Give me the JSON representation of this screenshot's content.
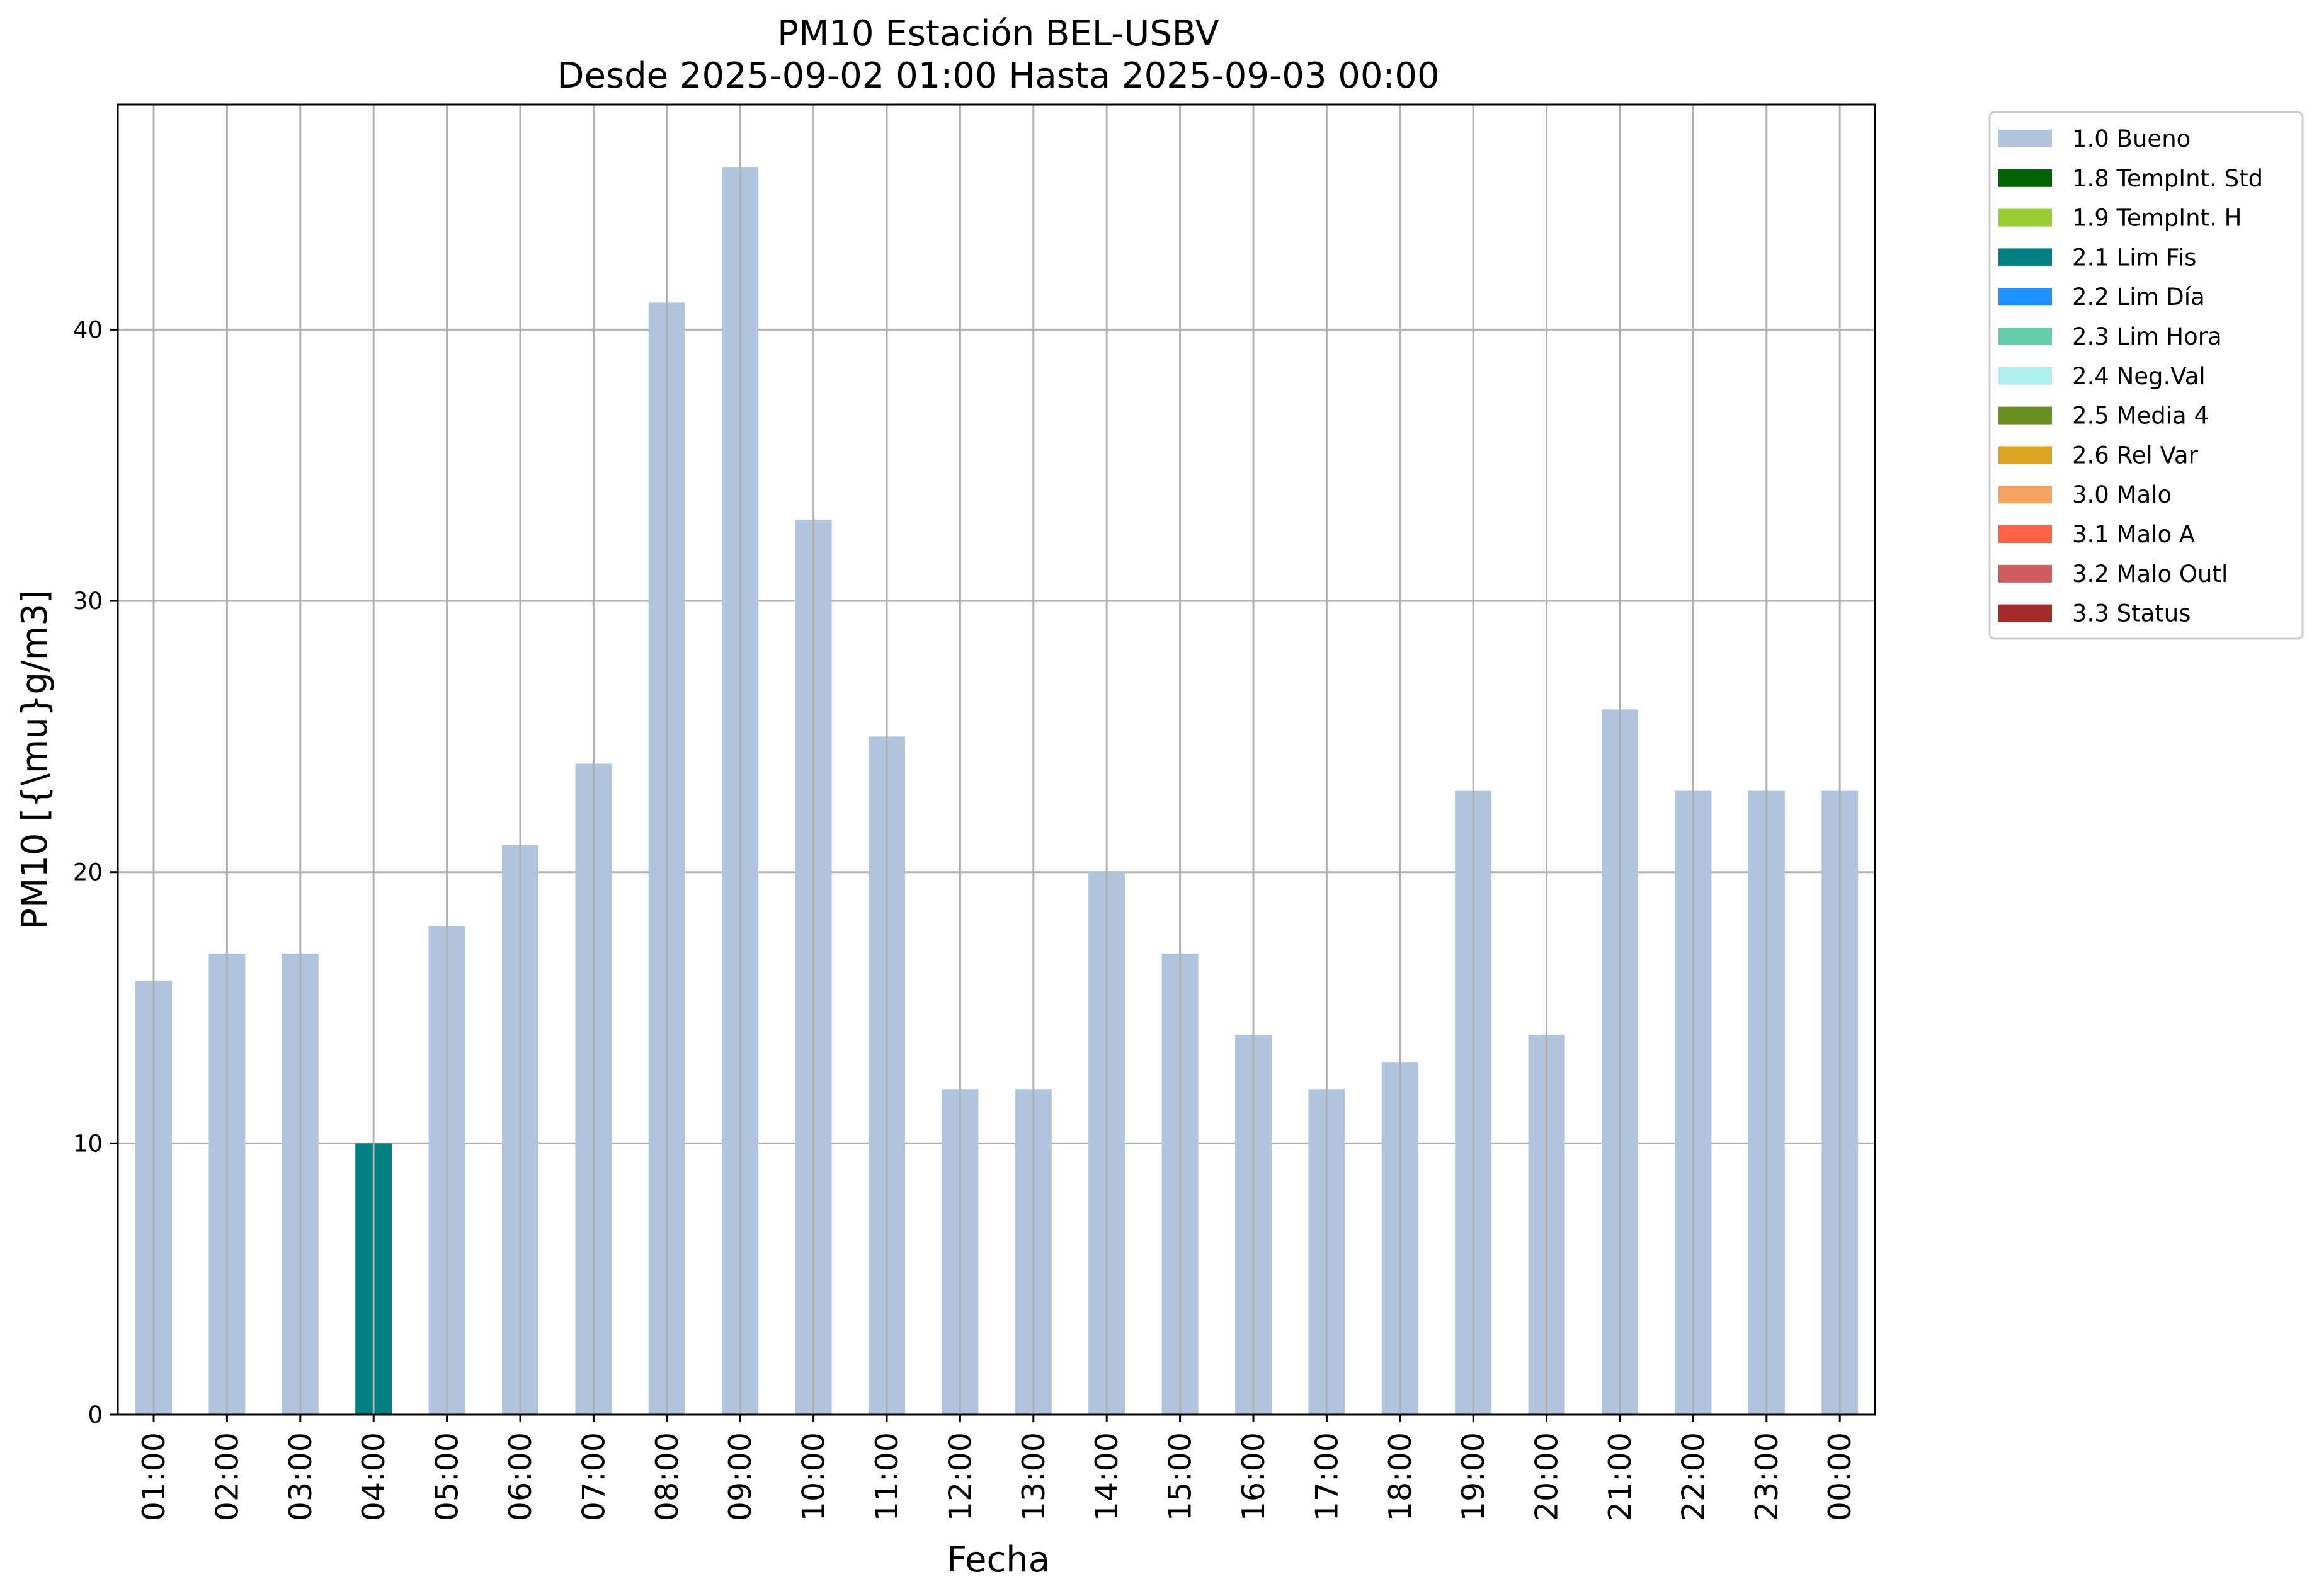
{
  "chart_data": {
    "type": "bar",
    "title": "PM10 Estación BEL-USBV",
    "subtitle": "Desde 2025-09-02 01:00 Hasta 2025-09-03 00:00",
    "xlabel": "Fecha",
    "ylabel": "PM10 [{\\mu}g/m3]",
    "ylim": [
      0,
      48.3
    ],
    "yticks": [
      0,
      10,
      20,
      30,
      40
    ],
    "grid": true,
    "legend_placement": "outside top-right",
    "categories": [
      "01:00",
      "02:00",
      "03:00",
      "04:00",
      "05:00",
      "06:00",
      "07:00",
      "08:00",
      "09:00",
      "10:00",
      "11:00",
      "12:00",
      "13:00",
      "14:00",
      "15:00",
      "16:00",
      "17:00",
      "18:00",
      "19:00",
      "20:00",
      "21:00",
      "22:00",
      "23:00",
      "00:00"
    ],
    "values": [
      16,
      17,
      17,
      10,
      18,
      21,
      24,
      41,
      46,
      33,
      25,
      12,
      12,
      20,
      17,
      14,
      12,
      13,
      23,
      14,
      26,
      23,
      23,
      23
    ],
    "bar_flags": [
      "1.0 Bueno",
      "1.0 Bueno",
      "1.0 Bueno",
      "2.1 Lim Fis",
      "1.0 Bueno",
      "1.0 Bueno",
      "1.0 Bueno",
      "1.0 Bueno",
      "1.0 Bueno",
      "1.0 Bueno",
      "1.0 Bueno",
      "1.0 Bueno",
      "1.0 Bueno",
      "1.0 Bueno",
      "1.0 Bueno",
      "1.0 Bueno",
      "1.0 Bueno",
      "1.0 Bueno",
      "1.0 Bueno",
      "1.0 Bueno",
      "1.0 Bueno",
      "1.0 Bueno",
      "1.0 Bueno",
      "1.0 Bueno"
    ],
    "legend": [
      {
        "label": "1.0 Bueno",
        "color": "#b0c4de"
      },
      {
        "label": "1.8 TempInt. Std",
        "color": "#006400"
      },
      {
        "label": "1.9 TempInt. H",
        "color": "#9acd32"
      },
      {
        "label": "2.1 Lim Fis",
        "color": "#008080"
      },
      {
        "label": "2.2 Lim Día",
        "color": "#1e90ff"
      },
      {
        "label": "2.3 Lim Hora",
        "color": "#66cdaa"
      },
      {
        "label": "2.4 Neg.Val",
        "color": "#afeeee"
      },
      {
        "label": "2.5 Media 4",
        "color": "#6b8e23"
      },
      {
        "label": "2.6 Rel Var",
        "color": "#daa520"
      },
      {
        "label": "3.0 Malo",
        "color": "#f4a460"
      },
      {
        "label": "3.1 Malo A",
        "color": "#ff6347"
      },
      {
        "label": "3.2 Malo Outl",
        "color": "#cd5c5c"
      },
      {
        "label": "3.3 Status",
        "color": "#a52a2a"
      }
    ]
  }
}
